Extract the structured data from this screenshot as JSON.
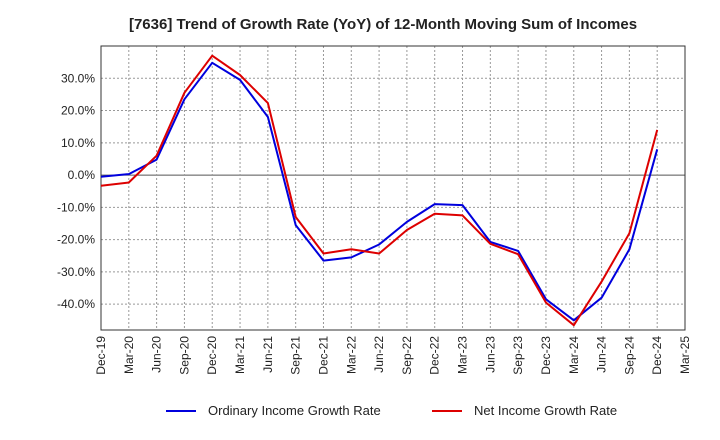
{
  "chart_data": {
    "type": "line",
    "title": "[7636]  Trend of Growth Rate (YoY) of 12-Month Moving Sum of Incomes",
    "xlabel": "",
    "ylabel": "",
    "ylim": [
      -48,
      40
    ],
    "y_ticks": [
      "30.0%",
      "20.0%",
      "10.0%",
      "0.0%",
      "-10.0%",
      "-20.0%",
      "-30.0%",
      "-40.0%"
    ],
    "y_tick_values": [
      30,
      20,
      10,
      0,
      -10,
      -20,
      -30,
      -40
    ],
    "x_ticks": [
      "Dec-19",
      "Mar-20",
      "Jun-20",
      "Sep-20",
      "Dec-20",
      "Mar-21",
      "Jun-21",
      "Sep-21",
      "Dec-21",
      "Mar-22",
      "Jun-22",
      "Sep-22",
      "Dec-22",
      "Mar-23",
      "Jun-23",
      "Sep-23",
      "Dec-23",
      "Mar-24",
      "Jun-24",
      "Sep-24",
      "Dec-24",
      "Mar-25"
    ],
    "grid": true,
    "legend_position": "bottom",
    "x": [
      "Dec-19",
      "Mar-20",
      "Jun-20",
      "Sep-20",
      "Dec-20",
      "Mar-21",
      "Jun-21",
      "Sep-21",
      "Dec-21",
      "Mar-22",
      "Jun-22",
      "Sep-22",
      "Dec-22",
      "Mar-23",
      "Jun-23",
      "Sep-23",
      "Dec-23",
      "Mar-24",
      "Jun-24",
      "Sep-24",
      "Dec-24"
    ],
    "series": [
      {
        "name": "Ordinary Income Growth Rate",
        "color": "#0000dd",
        "values": [
          -0.5,
          0.3,
          4.8,
          23.5,
          34.8,
          29.5,
          18.0,
          -15.5,
          -26.5,
          -25.5,
          -21.5,
          -14.5,
          -9.0,
          -9.3,
          -20.7,
          -23.5,
          -38.5,
          -45.0,
          -38.0,
          -23.0,
          8.0
        ]
      },
      {
        "name": "Net Income Growth Rate",
        "color": "#dd0000",
        "values": [
          -3.3,
          -2.3,
          6.0,
          25.5,
          37.0,
          31.0,
          22.3,
          -13.0,
          -24.3,
          -23.0,
          -24.3,
          -17.0,
          -12.0,
          -12.5,
          -21.3,
          -24.5,
          -39.5,
          -46.5,
          -33.0,
          -18.0,
          14.0
        ]
      }
    ]
  }
}
